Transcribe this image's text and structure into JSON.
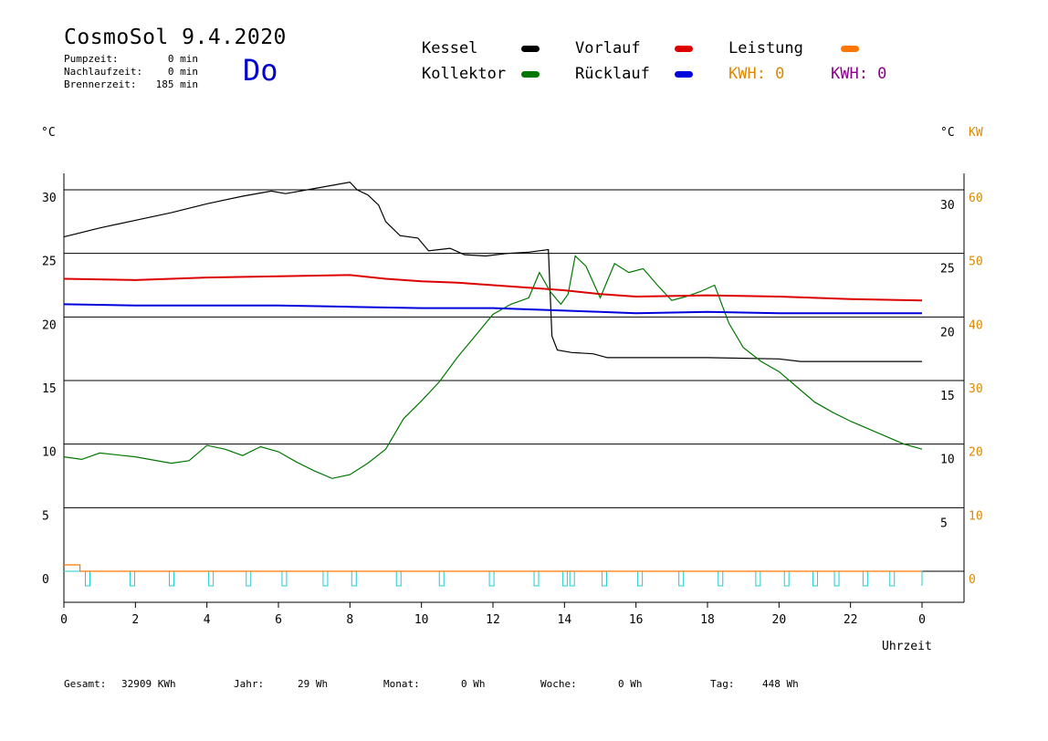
{
  "header": {
    "title": "CosmoSol 9.4.2020",
    "day": "Do",
    "stats": [
      {
        "label": "Pumpzeit:",
        "value": "0 min"
      },
      {
        "label": "Nachlaufzeit:",
        "value": "0 min"
      },
      {
        "label": "Brennerzeit:",
        "value": "185 min"
      }
    ]
  },
  "legend": {
    "items": [
      {
        "label": "Kessel",
        "color": "#000000"
      },
      {
        "label": "Kollektor",
        "color": "#007700"
      },
      {
        "label": "Vorlauf",
        "color": "#dd0000"
      },
      {
        "label": "Rücklauf",
        "color": "#0000dd"
      },
      {
        "label": "Leistung",
        "color": "#ff7700"
      }
    ],
    "kwh_orange": "KWH: 0",
    "kwh_purple": "KWH: 0",
    "kwh_orange_color": "#dd8800",
    "kwh_purple_color": "#880088"
  },
  "units": {
    "left": "°C",
    "right": "°C",
    "right2": "KW"
  },
  "footer": {
    "gesamt_label": "Gesamt:",
    "gesamt_value": "32909 KWh",
    "jahr_label": "Jahr:",
    "jahr_value": "29 Wh",
    "monat_label": "Monat:",
    "monat_value": "0 Wh",
    "woche_label": "Woche:",
    "woche_value": "0 Wh",
    "tag_label": "Tag:",
    "tag_value": "448 Wh"
  },
  "chart_data": {
    "type": "line",
    "xlabel": "Uhrzeit",
    "x_ticks": [
      "0",
      "2",
      "4",
      "6",
      "8",
      "10",
      "12",
      "14",
      "16",
      "18",
      "20",
      "22",
      "0"
    ],
    "xlim": [
      0,
      24
    ],
    "ylim": [
      -2,
      32
    ],
    "left_ticks": [
      "0",
      "5",
      "10",
      "15",
      "20",
      "25",
      "30"
    ],
    "right_ticks": [
      "5",
      "10",
      "15",
      "20",
      "25",
      "30"
    ],
    "right2_ticks": [
      "0",
      "10",
      "20",
      "30",
      "40",
      "50",
      "60"
    ],
    "grid": true,
    "series": [
      {
        "name": "Kessel",
        "color": "#000000",
        "x": [
          0,
          1,
          2,
          3,
          4,
          5,
          5.8,
          6.2,
          7,
          8,
          8.2,
          8.5,
          8.8,
          9,
          9.4,
          9.9,
          10.2,
          10.8,
          11.2,
          11.8,
          12.4,
          13.0,
          13.55,
          13.65,
          13.8,
          14.2,
          14.8,
          15.2,
          16,
          18,
          20,
          20.6,
          22,
          24
        ],
        "y": [
          26.3,
          27,
          27.6,
          28.2,
          28.9,
          29.5,
          29.9,
          29.7,
          30.1,
          30.6,
          30.0,
          29.6,
          28.8,
          27.5,
          26.4,
          26.2,
          25.2,
          25.4,
          24.9,
          24.8,
          25.0,
          25.1,
          25.3,
          18.5,
          17.4,
          17.2,
          17.1,
          16.8,
          16.8,
          16.8,
          16.7,
          16.5,
          16.5,
          16.5
        ]
      },
      {
        "name": "Kollektor",
        "color": "#007700",
        "x": [
          0,
          0.5,
          1,
          2,
          3,
          3.5,
          4,
          4.5,
          5,
          5.5,
          6,
          6.5,
          7,
          7.5,
          8,
          8.5,
          9,
          9.5,
          10,
          10.5,
          11,
          11.5,
          12,
          12.5,
          13,
          13.3,
          13.6,
          13.9,
          14.1,
          14.3,
          14.6,
          15,
          15.4,
          15.8,
          16.2,
          16.6,
          17,
          17.4,
          17.8,
          18.2,
          18.6,
          19,
          19.5,
          20,
          20.5,
          21,
          21.5,
          22,
          22.5,
          23,
          23.5,
          24
        ],
        "y": [
          9.0,
          8.8,
          9.3,
          9.0,
          8.5,
          8.7,
          9.9,
          9.6,
          9.1,
          9.8,
          9.4,
          8.6,
          7.9,
          7.3,
          7.6,
          8.5,
          9.6,
          12.0,
          13.4,
          14.9,
          16.8,
          18.5,
          20.2,
          21.0,
          21.5,
          23.5,
          22.0,
          21.0,
          21.8,
          24.8,
          24.0,
          21.5,
          24.2,
          23.5,
          23.8,
          22.5,
          21.3,
          21.6,
          22.0,
          22.5,
          19.5,
          17.6,
          16.5,
          15.7,
          14.5,
          13.3,
          12.5,
          11.8,
          11.2,
          10.6,
          10.0,
          9.6
        ]
      },
      {
        "name": "Vorlauf",
        "color": "#dd0000",
        "x": [
          0,
          2,
          4,
          6,
          8,
          9,
          10,
          11,
          12,
          13,
          14,
          15,
          16,
          18,
          20,
          22,
          24
        ],
        "y": [
          23.0,
          22.9,
          23.1,
          23.2,
          23.3,
          23.0,
          22.8,
          22.7,
          22.5,
          22.3,
          22.1,
          21.8,
          21.6,
          21.7,
          21.6,
          21.4,
          21.3
        ]
      },
      {
        "name": "Rücklauf",
        "color": "#0000dd",
        "x": [
          0,
          2,
          4,
          6,
          8,
          10,
          12,
          13,
          14,
          15,
          16,
          18,
          20,
          22,
          24
        ],
        "y": [
          21.0,
          20.9,
          20.9,
          20.9,
          20.8,
          20.7,
          20.7,
          20.6,
          20.5,
          20.4,
          20.3,
          20.4,
          20.3,
          20.3,
          20.3
        ]
      },
      {
        "name": "Leistung",
        "color": "#ff7700",
        "x": [
          0,
          0.45,
          0.45,
          24
        ],
        "y": [
          0.5,
          0.5,
          0,
          0
        ]
      }
    ],
    "pump_pulses": [
      0.6,
      1.85,
      2.95,
      4.05,
      5.1,
      6.1,
      7.25,
      8.05,
      9.3,
      10.5,
      11.9,
      13.15,
      13.95,
      14.15,
      15.05,
      16.05,
      17.2,
      18.3,
      19.35,
      20.15,
      20.95,
      21.55,
      22.35,
      23.1
    ]
  }
}
